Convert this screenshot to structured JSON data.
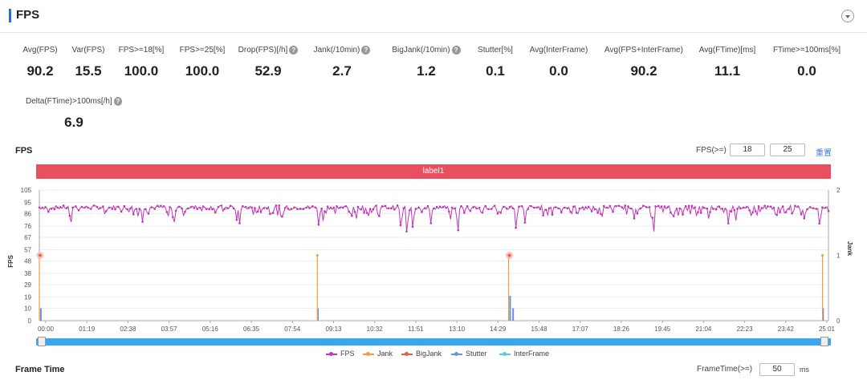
{
  "header": {
    "title": "FPS"
  },
  "metrics_row1": [
    {
      "label": "Avg(FPS)",
      "value": "90.2",
      "help": false
    },
    {
      "label": "Var(FPS)",
      "value": "15.5",
      "help": false
    },
    {
      "label": "FPS>=18[%]",
      "value": "100.0",
      "help": false
    },
    {
      "label": "FPS>=25[%]",
      "value": "100.0",
      "help": false
    },
    {
      "label": "Drop(FPS)[/h]",
      "value": "52.9",
      "help": true
    },
    {
      "label": "Jank(/10min)",
      "value": "2.7",
      "help": true
    },
    {
      "label": "BigJank(/10min)",
      "value": "1.2",
      "help": true
    },
    {
      "label": "Stutter[%]",
      "value": "0.1",
      "help": false
    },
    {
      "label": "Avg(InterFrame)",
      "value": "0.0",
      "help": false
    },
    {
      "label": "Avg(FPS+InterFrame)",
      "value": "90.2",
      "help": false
    },
    {
      "label": "Avg(FTime)[ms]",
      "value": "11.1",
      "help": false
    },
    {
      "label": "FTime>=100ms[%]",
      "value": "0.0",
      "help": false
    }
  ],
  "metrics_row2": [
    {
      "label": "Delta(FTime)>100ms[/h]",
      "value": "6.9",
      "help": true
    }
  ],
  "fps_section": {
    "title": "FPS",
    "threshold_label": "FPS(>=)",
    "threshold_1": "18",
    "threshold_2": "25",
    "reset_label": "重置",
    "label_bar": "label1"
  },
  "chart_data": {
    "type": "line",
    "x_ticks": [
      "00:00",
      "01:19",
      "02:38",
      "03:57",
      "05:16",
      "06:35",
      "07:54",
      "09:13",
      "10:32",
      "11:51",
      "13:10",
      "14:29",
      "15:48",
      "17:07",
      "18:26",
      "19:45",
      "21:04",
      "22:23",
      "23:42",
      "25:01"
    ],
    "y_left_ticks": [
      0,
      10,
      19,
      29,
      38,
      48,
      57,
      67,
      76,
      86,
      95,
      105
    ],
    "y_left_range": [
      0,
      105
    ],
    "y_left_label": "FPS",
    "y_right_ticks": [
      0,
      1,
      2
    ],
    "y_right_range": [
      0,
      2
    ],
    "y_right_label": "Jank",
    "duration_minutes": 26.4,
    "fps_baseline": 91,
    "fps_dips": [
      {
        "t": 1.05,
        "v": 75
      },
      {
        "t": 2.2,
        "v": 84
      },
      {
        "t": 3.3,
        "v": 84
      },
      {
        "t": 3.45,
        "v": 79
      },
      {
        "t": 4.3,
        "v": 82
      },
      {
        "t": 4.5,
        "v": 74
      },
      {
        "t": 5.9,
        "v": 86
      },
      {
        "t": 6.6,
        "v": 81
      },
      {
        "t": 6.7,
        "v": 78
      },
      {
        "t": 7.3,
        "v": 87
      },
      {
        "t": 8.1,
        "v": 79
      },
      {
        "t": 9.35,
        "v": 75
      },
      {
        "t": 9.5,
        "v": 79
      },
      {
        "t": 10.6,
        "v": 80
      },
      {
        "t": 11.0,
        "v": 82
      },
      {
        "t": 11.35,
        "v": 80
      },
      {
        "t": 12.1,
        "v": 71
      },
      {
        "t": 12.3,
        "v": 66
      },
      {
        "t": 12.5,
        "v": 72
      },
      {
        "t": 13.1,
        "v": 78
      },
      {
        "t": 13.75,
        "v": 80
      },
      {
        "t": 14.0,
        "v": 68
      },
      {
        "t": 14.8,
        "v": 84
      },
      {
        "t": 15.35,
        "v": 84
      },
      {
        "t": 15.95,
        "v": 72
      },
      {
        "t": 16.25,
        "v": 78
      },
      {
        "t": 17.0,
        "v": 84
      },
      {
        "t": 18.0,
        "v": 83
      },
      {
        "t": 18.8,
        "v": 84
      },
      {
        "t": 19.9,
        "v": 82
      },
      {
        "t": 20.55,
        "v": 67
      },
      {
        "t": 21.2,
        "v": 80
      },
      {
        "t": 22.0,
        "v": 82
      },
      {
        "t": 22.4,
        "v": 80
      },
      {
        "t": 23.05,
        "v": 78
      },
      {
        "t": 23.3,
        "v": 80
      },
      {
        "t": 24.0,
        "v": 83
      },
      {
        "t": 24.65,
        "v": 81
      },
      {
        "t": 25.2,
        "v": 84
      },
      {
        "t": 25.6,
        "v": 80
      },
      {
        "t": 26.1,
        "v": 77
      }
    ],
    "jank_events": [
      {
        "t": 0.0,
        "v": 1,
        "bigjank": true
      },
      {
        "t": 9.3,
        "v": 1,
        "bigjank": false
      },
      {
        "t": 15.7,
        "v": 1,
        "bigjank": true
      },
      {
        "t": 26.2,
        "v": 1,
        "bigjank": false
      }
    ],
    "stutter_events": [
      {
        "t": 0.05,
        "fps": 10
      },
      {
        "t": 9.32,
        "fps": 10
      },
      {
        "t": 15.75,
        "fps": 20
      },
      {
        "t": 15.85,
        "fps": 10
      },
      {
        "t": 26.22,
        "fps": 10
      }
    ],
    "legend": [
      {
        "name": "FPS",
        "color": "#c233b8"
      },
      {
        "name": "Jank",
        "color": "#f39b3e"
      },
      {
        "name": "BigJank",
        "color": "#ee5a3a"
      },
      {
        "name": "Stutter",
        "color": "#6a8fe0"
      },
      {
        "name": "InterFrame",
        "color": "#4fd0d8"
      }
    ]
  },
  "bottom": {
    "frame_time_title": "Frame Time",
    "frametime_label": "FrameTime(>=)",
    "frametime_value": "50",
    "ms_label": "ms"
  }
}
